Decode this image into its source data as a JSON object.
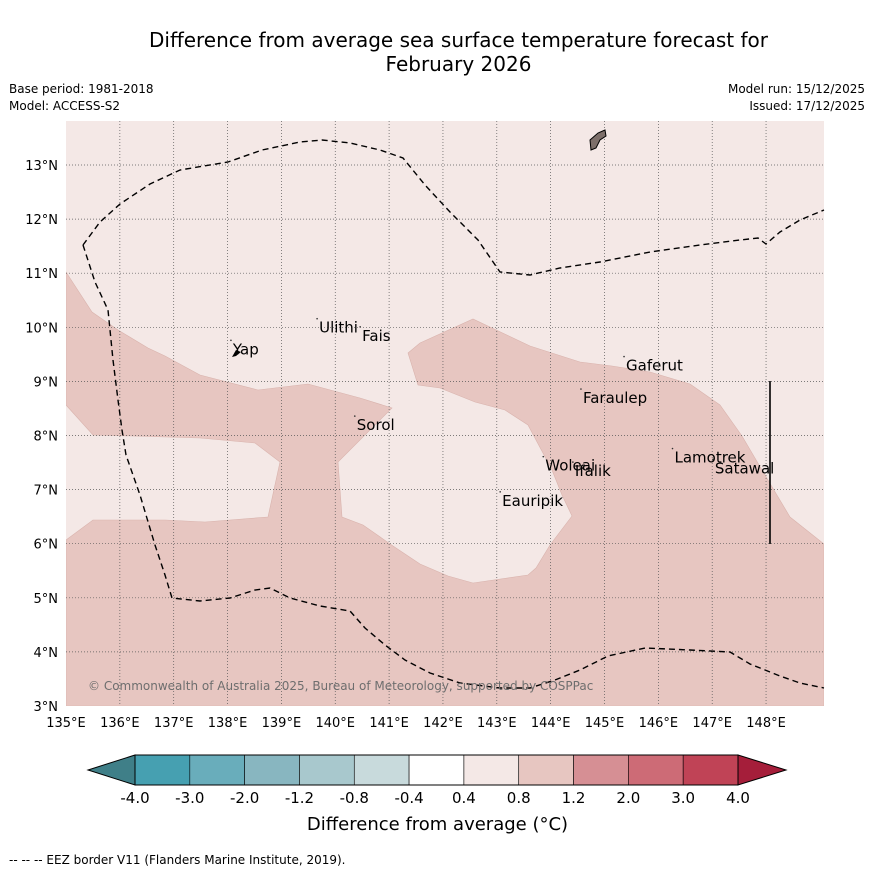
{
  "title_line1": "Difference from average sea surface temperature forecast for",
  "title_line2": "February 2026",
  "base_period": "Base period: 1981-2018",
  "model": "Model: ACCESS-S2",
  "model_run": "Model run: 15/12/2025",
  "issued": "Issued: 17/12/2025",
  "copyright": "© Commonwealth of Australia 2025, Bureau of Meteorology, supported by COSPPac",
  "footer": "--  --  -- EEZ border V11 (Flanders Marine Institute, 2019).",
  "colors": {
    "anom_04_08": "#f4e8e6",
    "anom_08_12": "#e7c6c1",
    "land": "#7d6f6a",
    "grid": "#555555"
  },
  "map": {
    "lon_range": [
      135,
      149
    ],
    "lat_range": [
      3,
      13.8
    ],
    "lon_ticks": [
      "135°E",
      "136°E",
      "137°E",
      "138°E",
      "139°E",
      "140°E",
      "141°E",
      "142°E",
      "143°E",
      "144°E",
      "145°E",
      "146°E",
      "147°E",
      "148°E"
    ],
    "lat_ticks": [
      "3°N",
      "4°N",
      "5°N",
      "6°N",
      "7°N",
      "8°N",
      "9°N",
      "10°N",
      "11°N",
      "12°N",
      "13°N"
    ],
    "places": [
      {
        "name": "Yap",
        "lon": 138.1,
        "lat": 9.5
      },
      {
        "name": "Ulithi",
        "lon": 139.7,
        "lat": 9.9
      },
      {
        "name": "Fais",
        "lon": 140.5,
        "lat": 9.75
      },
      {
        "name": "Sorol",
        "lon": 140.4,
        "lat": 8.1
      },
      {
        "name": "Gaferut",
        "lon": 145.4,
        "lat": 9.2
      },
      {
        "name": "Faraulep",
        "lon": 144.6,
        "lat": 8.6
      },
      {
        "name": "Woleai",
        "lon": 143.9,
        "lat": 7.35
      },
      {
        "name": "Ifalik",
        "lon": 144.45,
        "lat": 7.25
      },
      {
        "name": "Lamotrek",
        "lon": 146.3,
        "lat": 7.5
      },
      {
        "name": "Satawal",
        "lon": 147.05,
        "lat": 7.3
      },
      {
        "name": "Eauripik",
        "lon": 143.1,
        "lat": 6.7
      }
    ]
  },
  "colorbar": {
    "tick_labels": [
      "-4.0",
      "-3.0",
      "-2.0",
      "-1.2",
      "-0.8",
      "-0.4",
      "0.4",
      "0.8",
      "1.2",
      "2.0",
      "3.0",
      "4.0"
    ],
    "colors": [
      "#3f7f88",
      "#46a0b1",
      "#69adbb",
      "#88b6c0",
      "#a8c8cd",
      "#c8dadc",
      "#ffffff",
      "#f4e8e6",
      "#e7c6c1",
      "#d68f94",
      "#cd6b76",
      "#c04356",
      "#a51e3a"
    ],
    "label": "Difference from average ($^\\circ$C)",
    "label_display": "Difference from average (°C)"
  }
}
